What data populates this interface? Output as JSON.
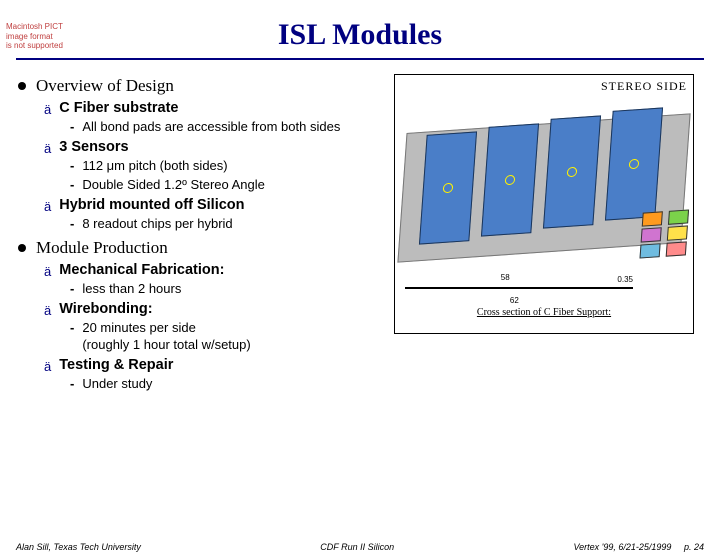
{
  "warning": {
    "l1": "Macintosh PICT",
    "l2": "image format",
    "l3": "is not supported"
  },
  "title": "ISL Modules",
  "sections": [
    {
      "heading": "Overview of Design",
      "items": [
        {
          "label": "C Fiber substrate",
          "subs": [
            "All bond pads are accessible from both sides"
          ]
        },
        {
          "label": "3 Sensors",
          "subs": [
            "112 μm pitch (both sides)",
            "Double Sided 1.2º Stereo Angle"
          ]
        },
        {
          "label": "Hybrid mounted off Silicon",
          "subs": [
            "8 readout chips per hybrid"
          ]
        }
      ]
    },
    {
      "heading": "Module Production",
      "items": [
        {
          "label": "Mechanical Fabrication:",
          "subs": [
            "less than 2 hours"
          ]
        },
        {
          "label": "Wirebonding:",
          "subs": [
            "20 minutes per side\n              (roughly 1 hour total w/setup)"
          ]
        },
        {
          "label": "Testing & Repair",
          "subs": [
            "Under study"
          ]
        }
      ]
    }
  ],
  "diagram": {
    "stereo_label": "STEREO  SIDE",
    "cross_label": "Cross section of C Fiber Support:",
    "dim_a": "58",
    "dim_b": "0.35",
    "dim_c": "62",
    "sensor_color": "#4a7ec8",
    "base_color": "#bcbcbc",
    "hybrid_colors": [
      "#ff9a1f",
      "#7bd24a",
      "#d074d0",
      "#ffe14a",
      "#6fbce0",
      "#ff8b8b"
    ]
  },
  "footer": {
    "left": "Alan Sill, Texas Tech University",
    "center": "CDF Run II Silicon",
    "right_a": "Vertex '99, 6/21-25/1999",
    "right_b": "p. 24"
  },
  "colors": {
    "accent": "#000080"
  }
}
